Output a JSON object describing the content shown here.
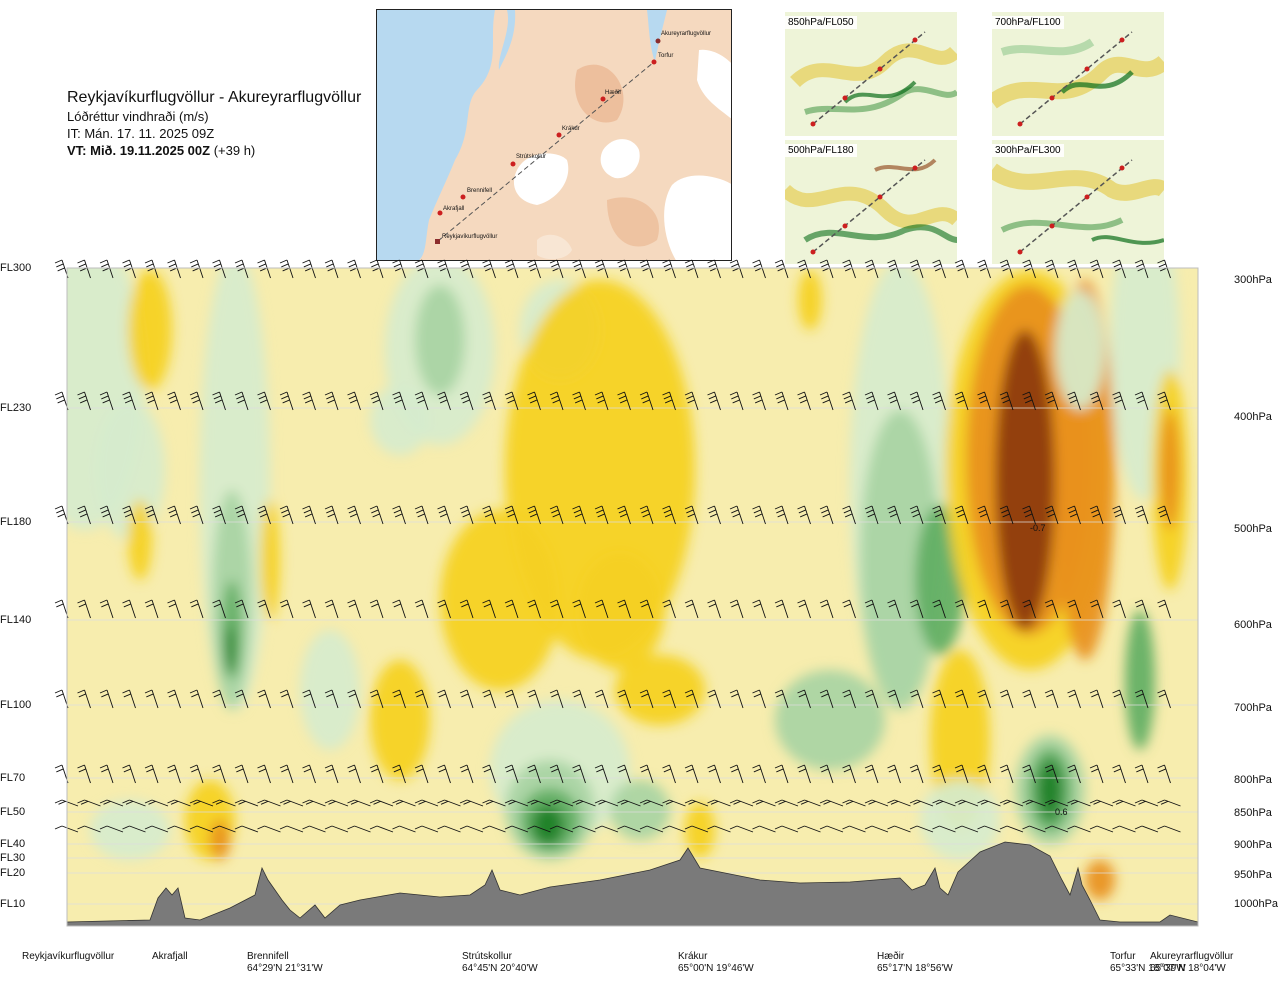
{
  "header": {
    "title": "Reykjavíkurflugvöllur - Akureyrarflugvöllur",
    "subtitle": "Lóðréttur vindhraði (m/s)",
    "issue_time": "IT: Mán. 17. 11. 2025 09Z",
    "valid_prefix": "VT: Mið. 19.11.2025 00Z",
    "valid_suffix": "(+39 h)"
  },
  "map_inset": {
    "waypoints": [
      "Akureyrarflugvöllur",
      "Torfur",
      "Hæðir",
      "Krákur",
      "Strútskollur",
      "Brennifell",
      "Akrafjall",
      "Reykjavíkurflugvöllur"
    ]
  },
  "thumbnails": [
    "850hPa/FL050",
    "700hPa/FL100",
    "500hPa/FL180",
    "300hPa/FL300"
  ],
  "left_axis": [
    "FL300",
    "FL230",
    "FL180",
    "FL140",
    "FL100",
    "FL70",
    "FL50",
    "FL40",
    "FL30",
    "FL20",
    "FL10"
  ],
  "right_axis": [
    "300hPa",
    "400hPa",
    "500hPa",
    "600hPa",
    "700hPa",
    "800hPa",
    "850hPa",
    "900hPa",
    "950hPa",
    "1000hPa"
  ],
  "stations": [
    {
      "name": "Reykjavíkurflugvöllur",
      "coord": ""
    },
    {
      "name": "Akrafjall",
      "coord": ""
    },
    {
      "name": "Brennifell",
      "coord": "64°29'N 21°31'W"
    },
    {
      "name": "Strútskollur",
      "coord": "64°45'N 20°40'W"
    },
    {
      "name": "Krákur",
      "coord": "65°00'N 19°46'W"
    },
    {
      "name": "Hæðir",
      "coord": "65°17'N 18°56'W"
    },
    {
      "name": "Torfur",
      "coord": "65°33'N 18°07'W"
    },
    {
      "name": "Akureyrarflugvöllur",
      "coord": "65°39'N 18°04'W"
    }
  ],
  "chart_data": {
    "type": "heatmap",
    "title": "Reykjavíkurflugvöllur - Akureyrarflugvöllur",
    "quantity": "Lóðréttur vindhraði (m/s)",
    "x": [
      "Reykjavíkurflugvöllur",
      "Akrafjall",
      "Brennifell",
      "Strútskollur",
      "Krákur",
      "Hæðir",
      "Torfur",
      "Akureyrarflugvöllur"
    ],
    "y_left": [
      "FL10",
      "FL20",
      "FL30",
      "FL40",
      "FL50",
      "FL70",
      "FL100",
      "FL140",
      "FL180",
      "FL230",
      "FL300"
    ],
    "y_right": [
      "1000hPa",
      "950hPa",
      "900hPa",
      "850hPa",
      "800hPa",
      "700hPa",
      "600hPa",
      "500hPa",
      "400hPa",
      "300hPa"
    ],
    "annotations": [
      {
        "text": "-0.7",
        "station_near": "Hæðir–Torfur",
        "level": "500hPa"
      },
      {
        "text": "0.6",
        "station_near": "Torfur",
        "level": "850hPa"
      }
    ],
    "color_scale": {
      "negative_strong": "#8b3a0f",
      "negative_mid": "#e8901e",
      "negative_weak": "#f5d020",
      "near_zero_neg": "#f7edae",
      "near_zero_pos": "#d6eccd",
      "positive_weak": "#a8d4a3",
      "positive_mid": "#5fae63",
      "positive_strong": "#1c7f26"
    },
    "terrain_color": "#7a7a7a"
  }
}
